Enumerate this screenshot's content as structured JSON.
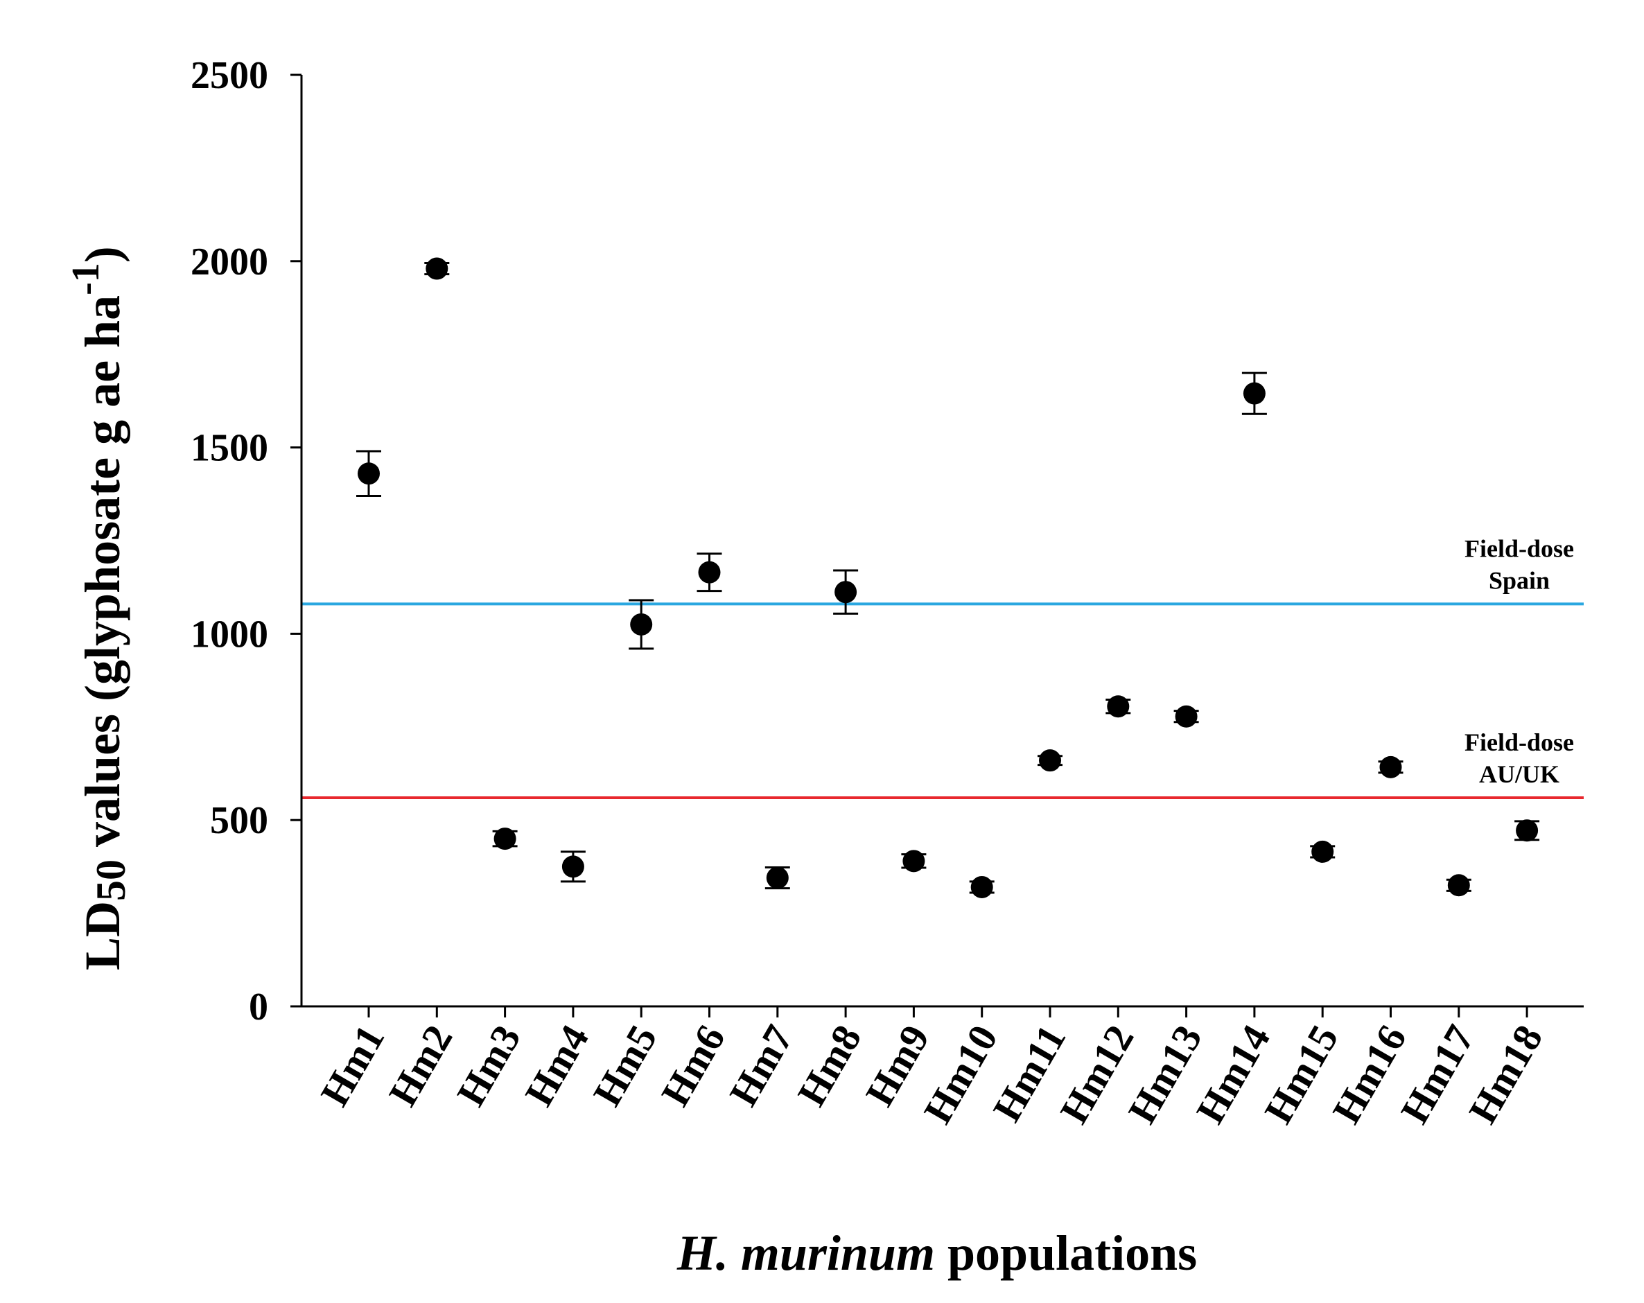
{
  "chart_data": {
    "type": "scatter",
    "title": "",
    "xlabel": {
      "italic": "H. murinum",
      "regular": " populations"
    },
    "ylabel": {
      "prefix": "LD",
      "subscript": "50",
      "middle": " values (glyphosate g ae ha",
      "superscript": "-1",
      "suffix": ")"
    },
    "ylim": [
      0,
      2500
    ],
    "yticks": [
      0,
      500,
      1000,
      1500,
      2000,
      2500
    ],
    "categories": [
      "Hm1",
      "Hm2",
      "Hm3",
      "Hm4",
      "Hm5",
      "Hm6",
      "Hm7",
      "Hm8",
      "Hm9",
      "Hm10",
      "Hm11",
      "Hm12",
      "Hm13",
      "Hm14",
      "Hm15",
      "Hm16",
      "Hm17",
      "Hm18"
    ],
    "values": [
      1430,
      1980,
      450,
      375,
      1025,
      1165,
      345,
      1112,
      390,
      320,
      660,
      805,
      778,
      1645,
      415,
      642,
      325,
      472
    ],
    "errors": [
      60,
      15,
      20,
      40,
      65,
      50,
      28,
      58,
      18,
      15,
      12,
      18,
      15,
      55,
      15,
      15,
      15,
      25
    ],
    "reference_lines": [
      {
        "name": "Field-dose Spain",
        "lines": [
          "Field-dose",
          "Spain"
        ],
        "value": 1080,
        "color": "#2aa7e0"
      },
      {
        "name": "Field-dose AU/UK",
        "lines": [
          "Field-dose",
          "AU/UK"
        ],
        "value": 560,
        "color": "#e8282e"
      }
    ],
    "grid": false,
    "legend": "none"
  }
}
